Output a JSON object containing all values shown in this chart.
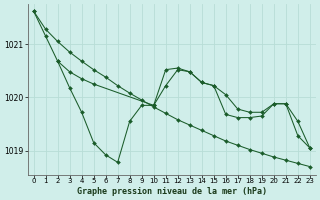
{
  "title": "Graphe pression niveau de la mer (hPa)",
  "bg_color": "#d0eeea",
  "line_color": "#1a5c2a",
  "grid_color": "#b8ddd6",
  "ylim": [
    1018.55,
    1021.75
  ],
  "xlim": [
    -0.5,
    23.5
  ],
  "yticks": [
    1019,
    1020,
    1021
  ],
  "xticks": [
    0,
    1,
    2,
    3,
    4,
    5,
    6,
    7,
    8,
    9,
    10,
    11,
    12,
    13,
    14,
    15,
    16,
    17,
    18,
    19,
    20,
    21,
    22,
    23
  ],
  "series": [
    {
      "x": [
        0,
        1,
        2,
        3,
        4,
        5,
        6,
        7,
        8,
        9,
        10,
        11,
        12,
        13,
        14,
        15,
        16,
        17,
        18,
        19,
        20,
        21,
        22,
        23
      ],
      "y": [
        1021.62,
        1021.28,
        1021.05,
        1020.85,
        1020.68,
        1020.52,
        1020.38,
        1020.22,
        1020.08,
        1019.95,
        1019.82,
        1019.7,
        1019.58,
        1019.48,
        1019.38,
        1019.28,
        1019.18,
        1019.1,
        1019.02,
        1018.95,
        1018.88,
        1018.82,
        1018.76,
        1018.7
      ]
    },
    {
      "x": [
        0,
        1,
        2,
        3,
        4,
        5,
        10,
        11,
        12,
        13,
        14,
        15,
        16,
        17,
        18,
        19,
        20,
        21,
        22,
        23
      ],
      "y": [
        1021.62,
        1021.15,
        1020.68,
        1020.48,
        1020.35,
        1020.25,
        1019.85,
        1020.22,
        1020.52,
        1020.48,
        1020.28,
        1020.22,
        1020.05,
        1019.78,
        1019.72,
        1019.72,
        1019.88,
        1019.88,
        1019.55,
        1019.05
      ]
    },
    {
      "x": [
        2,
        3,
        4,
        5,
        6,
        7,
        8,
        9,
        10,
        11,
        12,
        13,
        14,
        15,
        16,
        17,
        18,
        19,
        20,
        21,
        22,
        23
      ],
      "y": [
        1020.68,
        1020.18,
        1019.72,
        1019.15,
        1018.92,
        1018.78,
        1019.55,
        1019.85,
        1019.85,
        1020.52,
        1020.55,
        1020.48,
        1020.28,
        1020.22,
        1019.68,
        1019.62,
        1019.62,
        1019.65,
        1019.88,
        1019.88,
        1019.28,
        1019.05
      ]
    }
  ]
}
